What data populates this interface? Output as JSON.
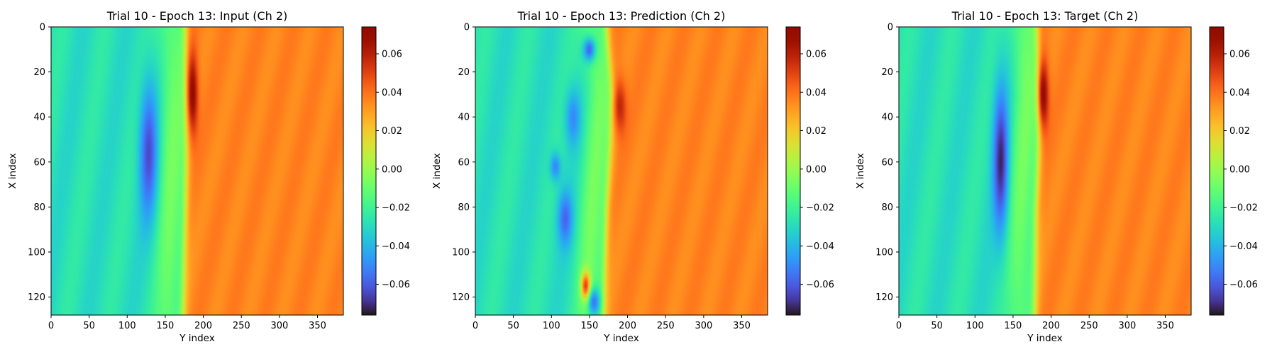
{
  "chart_data": [
    {
      "type": "heatmap",
      "title": "Trial 10 - Epoch 13: Input (Ch 2)",
      "xlabel": "Y index",
      "ylabel": "X index",
      "xlim": [
        0,
        384
      ],
      "ylim": [
        128,
        0
      ],
      "xticks": [
        "0",
        "50",
        "100",
        "150",
        "200",
        "250",
        "300",
        "350"
      ],
      "yticks": [
        "0",
        "20",
        "40",
        "60",
        "80",
        "100",
        "120"
      ],
      "colormap": "turbo",
      "colorbar": {
        "range": [
          -0.076,
          0.074
        ],
        "ticks": [
          "0.06",
          "0.04",
          "0.02",
          "0.00",
          "−0.02",
          "−0.04",
          "−0.06"
        ]
      },
      "features": {
        "front_y_at_x": [
          [
            0,
            176
          ],
          [
            30,
            178
          ],
          [
            80,
            176
          ],
          [
            128,
            173
          ]
        ],
        "trough": {
          "center": [
            128,
            55
          ],
          "radius": [
            12,
            30
          ],
          "value": -0.062
        },
        "peak": {
          "center": [
            186,
            30
          ],
          "radius": [
            7,
            18
          ],
          "value": 0.072
        },
        "left_base_value": -0.028,
        "right_base_value": 0.036
      }
    },
    {
      "type": "heatmap",
      "title": "Trial 10 - Epoch 13: Prediction (Ch 2)",
      "xlabel": "Y index",
      "ylabel": "X index",
      "xlim": [
        0,
        384
      ],
      "ylim": [
        128,
        0
      ],
      "xticks": [
        "0",
        "50",
        "100",
        "150",
        "200",
        "250",
        "300",
        "350"
      ],
      "yticks": [
        "0",
        "20",
        "40",
        "60",
        "80",
        "100",
        "120"
      ],
      "colormap": "turbo",
      "colorbar": {
        "range": [
          -0.076,
          0.074
        ],
        "ticks": [
          "0.06",
          "0.04",
          "0.02",
          "0.00",
          "−0.02",
          "−0.04",
          "−0.06"
        ]
      },
      "features": {
        "front_y_at_x": [
          [
            0,
            172
          ],
          [
            30,
            180
          ],
          [
            80,
            172
          ],
          [
            128,
            168
          ]
        ],
        "troughs": [
          {
            "center": [
              150,
              10
            ],
            "radius": [
              8,
              5
            ],
            "value": -0.07
          },
          {
            "center": [
              128,
              40
            ],
            "radius": [
              10,
              12
            ],
            "value": -0.05
          },
          {
            "center": [
              105,
              62
            ],
            "radius": [
              7,
              6
            ],
            "value": -0.055
          },
          {
            "center": [
              118,
              85
            ],
            "radius": [
              10,
              12
            ],
            "value": -0.055
          },
          {
            "center": [
              155,
              122
            ],
            "radius": [
              8,
              6
            ],
            "value": -0.07
          }
        ],
        "peaks": [
          {
            "center": [
              190,
              35
            ],
            "radius": [
              8,
              12
            ],
            "value": 0.06
          },
          {
            "center": [
              145,
              115
            ],
            "radius": [
              6,
              6
            ],
            "value": 0.035
          }
        ],
        "left_base_value": -0.028,
        "right_base_value": 0.036
      }
    },
    {
      "type": "heatmap",
      "title": "Trial 10 - Epoch 13: Target (Ch 2)",
      "xlabel": "Y index",
      "ylabel": "X index",
      "xlim": [
        0,
        384
      ],
      "ylim": [
        128,
        0
      ],
      "xticks": [
        "0",
        "50",
        "100",
        "150",
        "200",
        "250",
        "300",
        "350"
      ],
      "yticks": [
        "0",
        "20",
        "40",
        "60",
        "80",
        "100",
        "120"
      ],
      "colormap": "turbo",
      "colorbar": {
        "range": [
          -0.076,
          0.074
        ],
        "ticks": [
          "0.06",
          "0.04",
          "0.02",
          "0.00",
          "−0.02",
          "−0.04",
          "−0.06"
        ]
      },
      "features": {
        "front_y_at_x": [
          [
            0,
            181
          ],
          [
            30,
            186
          ],
          [
            80,
            180
          ],
          [
            128,
            178
          ]
        ],
        "trough": {
          "center": [
            134,
            60
          ],
          "radius": [
            10,
            32
          ],
          "value": -0.07
        },
        "peak": {
          "center": [
            190,
            30
          ],
          "radius": [
            7,
            16
          ],
          "value": 0.072
        },
        "left_base_value": -0.028,
        "right_base_value": 0.036
      }
    }
  ]
}
